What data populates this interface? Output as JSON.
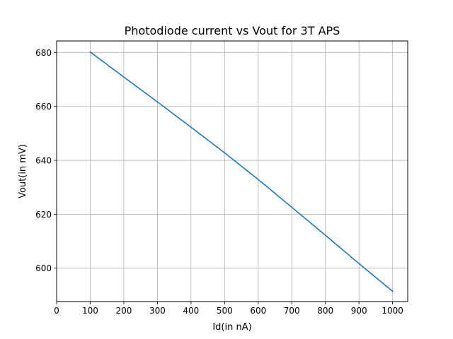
{
  "chart_data": {
    "type": "line",
    "title": "Photodiode current vs Vout for 3T APS",
    "xlabel": "Id(in nA)",
    "ylabel": "Vout(in mV)",
    "xlim": [
      0,
      1045
    ],
    "ylim": [
      587.6,
      684.3
    ],
    "x_ticks": [
      0,
      100,
      200,
      300,
      400,
      500,
      600,
      700,
      800,
      900,
      1000
    ],
    "y_ticks": [
      600,
      620,
      640,
      660,
      680
    ],
    "grid": true,
    "legend": "none",
    "series": [
      {
        "color": "#1f77b4",
        "x": [
          100,
          200,
          300,
          400,
          500,
          600,
          700,
          800,
          900,
          1000
        ],
        "y": [
          680.2,
          670.9,
          661.7,
          652.3,
          642.8,
          632.9,
          622.6,
          612.2,
          601.7,
          591.4
        ]
      }
    ]
  }
}
